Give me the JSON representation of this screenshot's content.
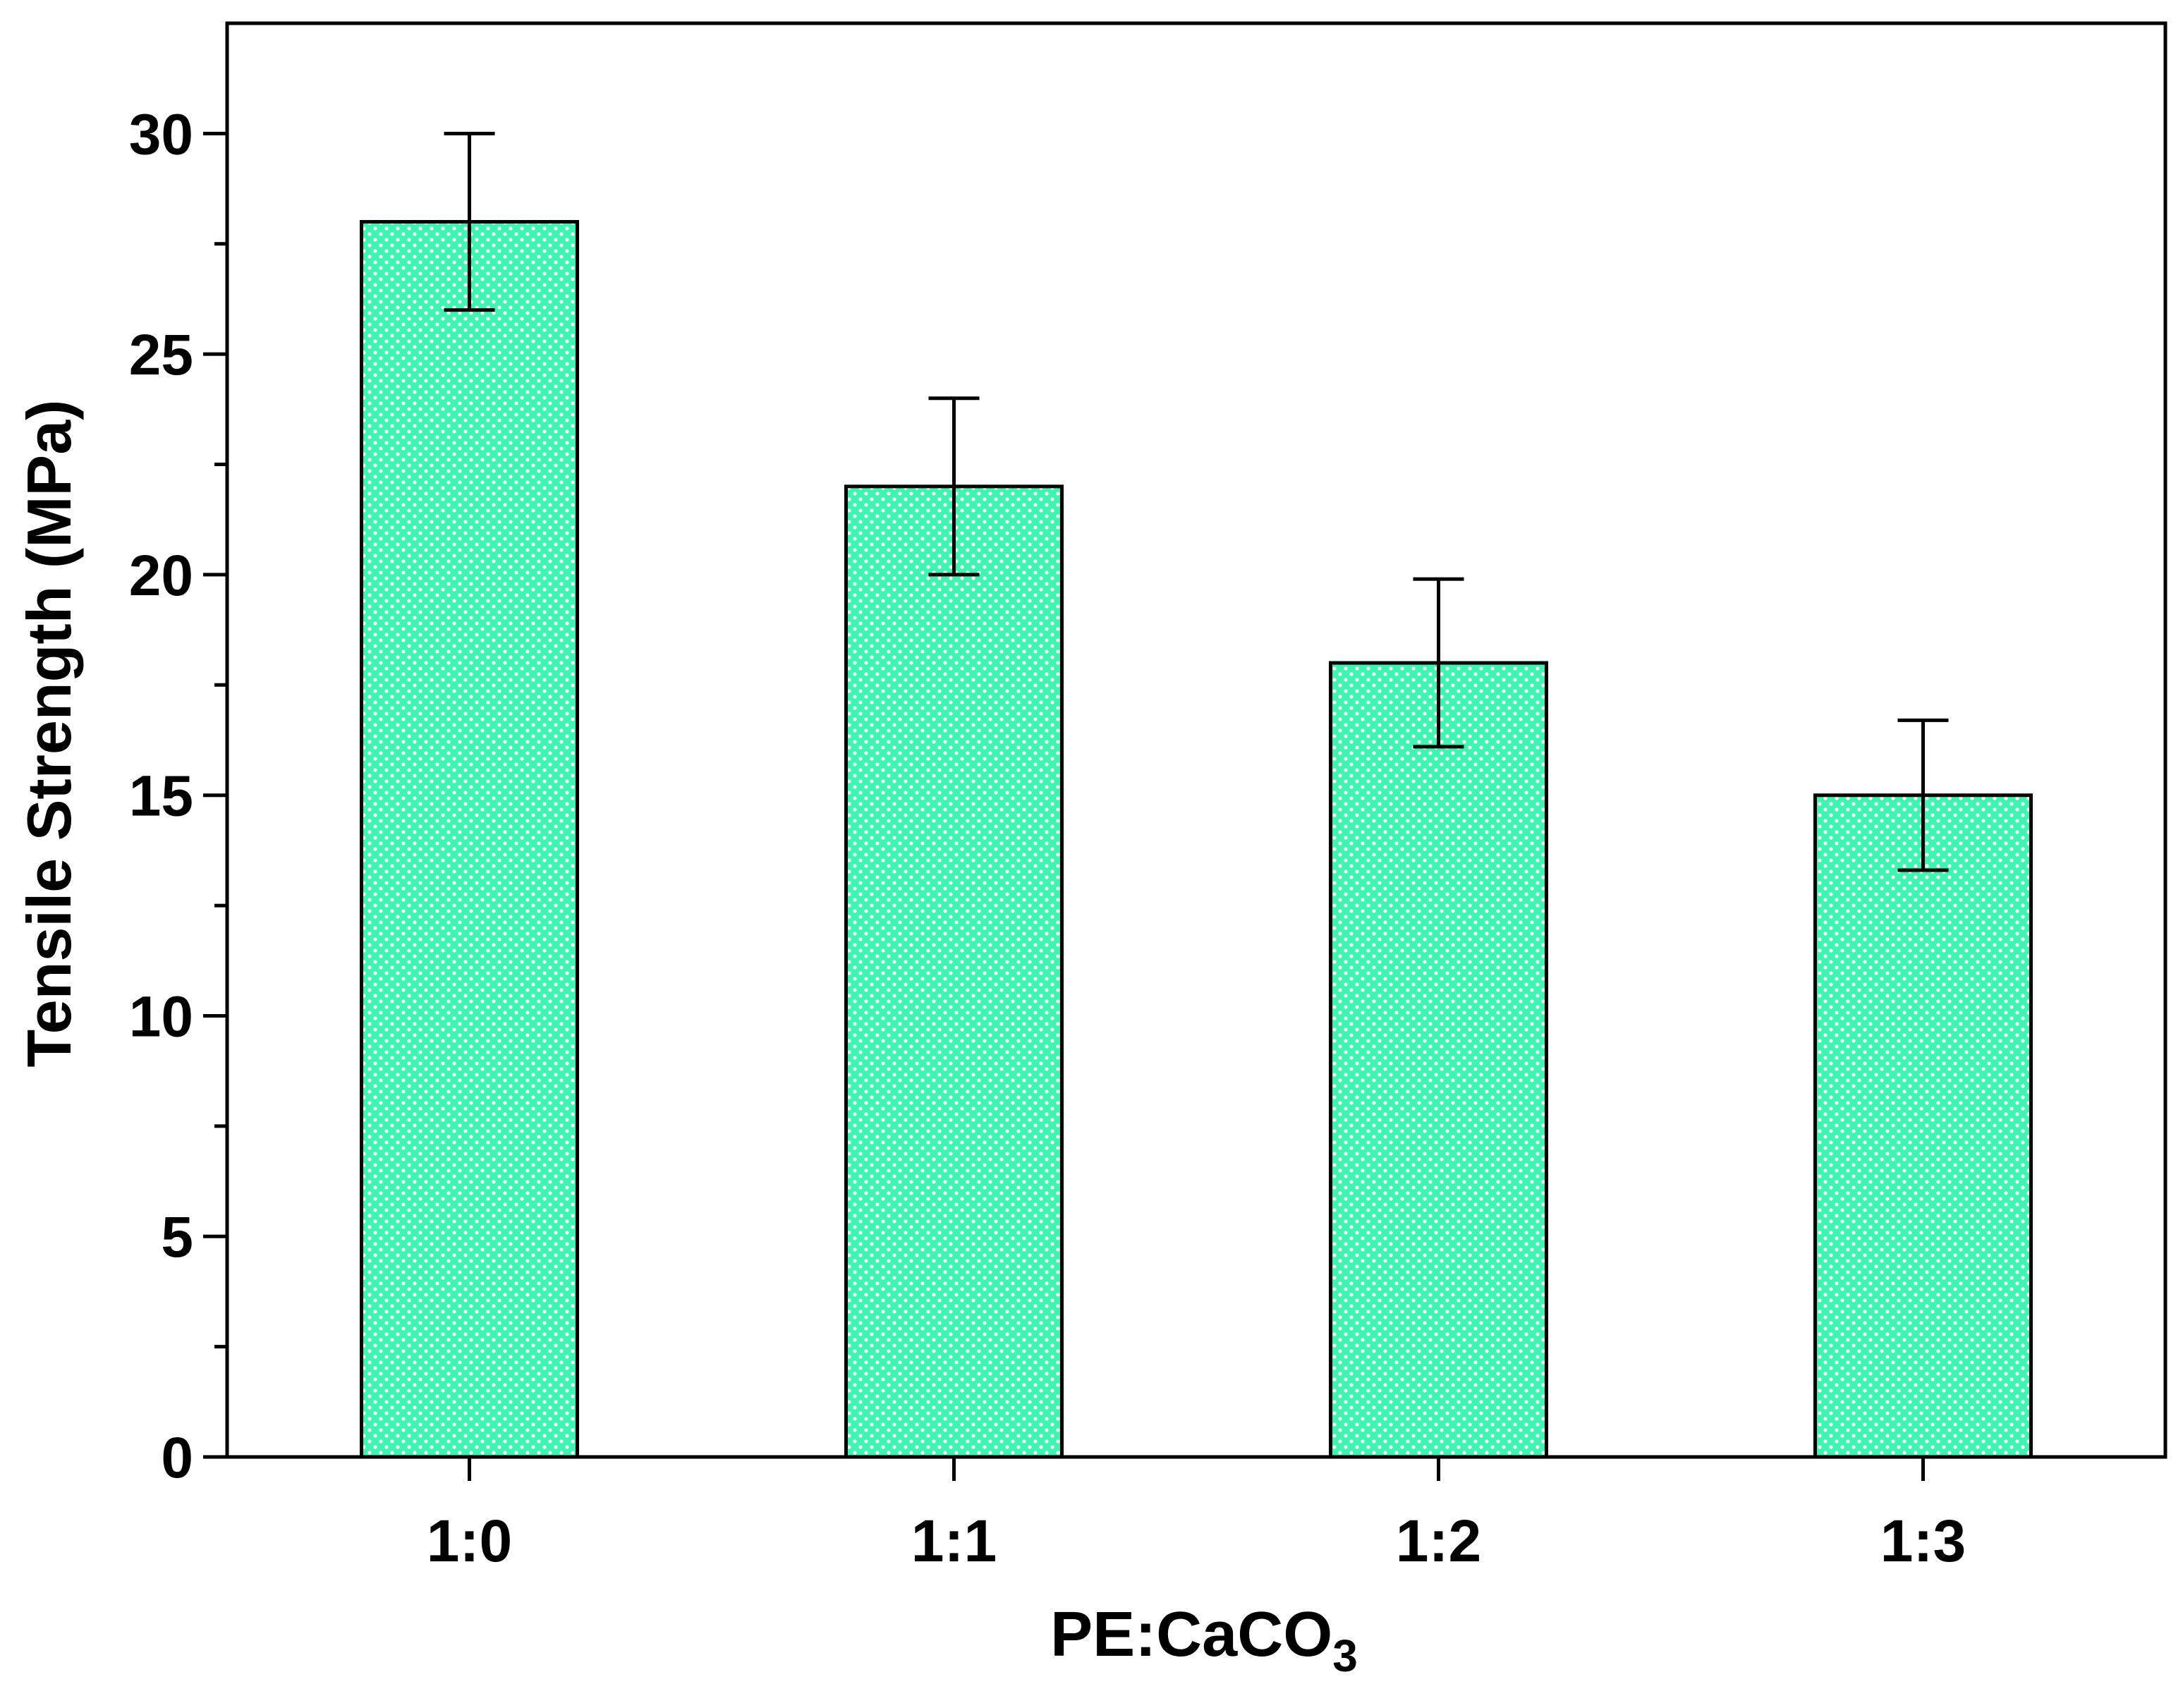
{
  "chart_data": {
    "type": "bar",
    "title": "",
    "xlabel": "PE:CaCO",
    "xlabel_subscript": "3",
    "ylabel": "Tensile Strength (MPa)",
    "categories": [
      "1:0",
      "1:1",
      "1:2",
      "1:3"
    ],
    "series": [
      {
        "name": "Tensile Strength",
        "values": [
          28,
          22,
          18,
          15
        ],
        "errors": [
          2,
          2,
          1.9,
          1.7
        ]
      }
    ],
    "ylim": [
      0,
      32.5
    ],
    "yticks": [
      0,
      5,
      10,
      15,
      20,
      25,
      30
    ],
    "ytick_labels": [
      "0",
      "5",
      "10",
      "15",
      "20",
      "25",
      "30"
    ],
    "y_minor_step": 2.5,
    "grid": false,
    "legend": "none",
    "bar_color": "#3df5b0",
    "bar_pattern_color": "#ffffff",
    "edge_color": "#000000"
  }
}
